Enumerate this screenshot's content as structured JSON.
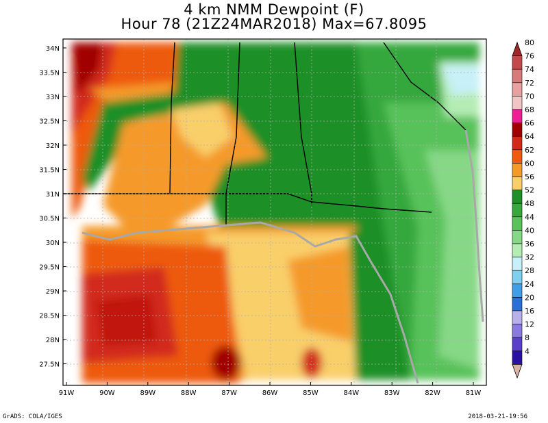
{
  "title": {
    "line1": "4 km NMM Dewpoint (F)",
    "line2": "Hour 78 (21Z24MAR2018) Max=67.8095"
  },
  "axes": {
    "lat_labels": [
      "34N",
      "33.5N",
      "33N",
      "32.5N",
      "32N",
      "31.5N",
      "31N",
      "30.5N",
      "30N",
      "29.5N",
      "29N",
      "28.5N",
      "28N",
      "27.5N"
    ],
    "lon_labels": [
      "91W",
      "90W",
      "89W",
      "88W",
      "87W",
      "86W",
      "85W",
      "84W",
      "83W",
      "82W",
      "81W"
    ]
  },
  "colorbar": {
    "labels": [
      "80",
      "76",
      "74",
      "72",
      "70",
      "68",
      "66",
      "64",
      "62",
      "60",
      "56",
      "52",
      "48",
      "44",
      "40",
      "36",
      "32",
      "28",
      "24",
      "20",
      "16",
      "12",
      "8",
      "4"
    ],
    "colors": [
      "#a0282a",
      "#c24a4a",
      "#d97a7a",
      "#e8a0a0",
      "#f2c4c4",
      "#f01e96",
      "#a00000",
      "#d22a1a",
      "#ee5a10",
      "#f59a2a",
      "#f9cf6a",
      "#1f8f27",
      "#36a83c",
      "#59c25a",
      "#86d886",
      "#b4ecb4",
      "#c8f0f8",
      "#7fcfee",
      "#3f9ee8",
      "#2a6fd8",
      "#b8b0e8",
      "#8a7ae0",
      "#5a40c8",
      "#2a10a0",
      "#d8b4a6"
    ]
  },
  "footer": {
    "left": "GrADS: COLA/IGES",
    "right": "2018-03-21-19:56"
  }
}
